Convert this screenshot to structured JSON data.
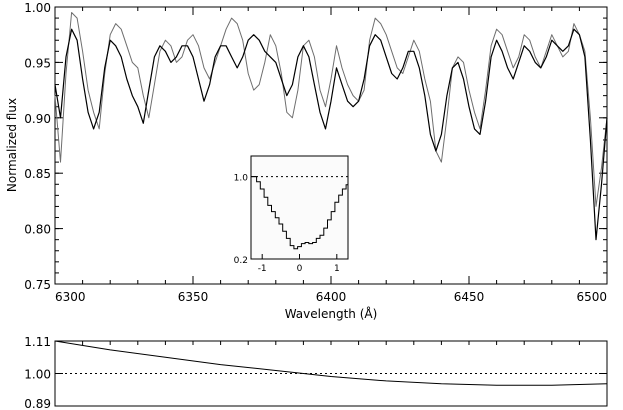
{
  "chart_data": [
    {
      "type": "line",
      "xlabel": "Wavelength (Å)",
      "ylabel": "Normalized flux",
      "xlim": [
        6300,
        6500
      ],
      "ylim": [
        0.75,
        1.0
      ],
      "xticks": [
        6300,
        6350,
        6400,
        6450,
        6500
      ],
      "xtick_labels": [
        "6300",
        "6350",
        "6400",
        "6450",
        "6500"
      ],
      "yticks": [
        0.75,
        0.8,
        0.85,
        0.9,
        0.95,
        1.0
      ],
      "ytick_labels": [
        "0.75",
        "0.80",
        "0.85",
        "0.90",
        "0.95",
        "1.00"
      ],
      "grid": false,
      "series": [
        {
          "color": "#6e6e6e",
          "x": [
            6300,
            6302,
            6304,
            6306,
            6308,
            6310,
            6312,
            6314,
            6316,
            6318,
            6320,
            6322,
            6324,
            6326,
            6328,
            6330,
            6332,
            6334,
            6336,
            6338,
            6340,
            6342,
            6344,
            6346,
            6348,
            6350,
            6352,
            6354,
            6356,
            6358,
            6360,
            6362,
            6364,
            6366,
            6368,
            6370,
            6372,
            6374,
            6376,
            6378,
            6380,
            6382,
            6384,
            6386,
            6388,
            6390,
            6392,
            6394,
            6396,
            6398,
            6400,
            6402,
            6404,
            6406,
            6408,
            6410,
            6412,
            6414,
            6416,
            6418,
            6420,
            6422,
            6424,
            6426,
            6428,
            6430,
            6432,
            6434,
            6436,
            6438,
            6440,
            6442,
            6444,
            6446,
            6448,
            6450,
            6452,
            6454,
            6456,
            6458,
            6460,
            6462,
            6464,
            6466,
            6468,
            6470,
            6472,
            6474,
            6476,
            6478,
            6480,
            6482,
            6484,
            6486,
            6488,
            6490,
            6492,
            6494,
            6496,
            6498,
            6500
          ],
          "y": [
            0.92,
            0.86,
            0.94,
            0.995,
            0.99,
            0.96,
            0.925,
            0.905,
            0.89,
            0.94,
            0.975,
            0.985,
            0.98,
            0.965,
            0.95,
            0.945,
            0.92,
            0.9,
            0.93,
            0.96,
            0.97,
            0.965,
            0.95,
            0.955,
            0.97,
            0.975,
            0.965,
            0.945,
            0.935,
            0.95,
            0.965,
            0.98,
            0.99,
            0.985,
            0.97,
            0.94,
            0.925,
            0.93,
            0.95,
            0.975,
            0.965,
            0.94,
            0.905,
            0.9,
            0.925,
            0.965,
            0.97,
            0.955,
            0.925,
            0.91,
            0.935,
            0.965,
            0.945,
            0.93,
            0.92,
            0.915,
            0.925,
            0.97,
            0.99,
            0.985,
            0.975,
            0.96,
            0.945,
            0.94,
            0.955,
            0.97,
            0.96,
            0.935,
            0.915,
            0.87,
            0.86,
            0.9,
            0.945,
            0.955,
            0.95,
            0.925,
            0.905,
            0.89,
            0.925,
            0.965,
            0.98,
            0.975,
            0.96,
            0.945,
            0.955,
            0.975,
            0.97,
            0.955,
            0.945,
            0.96,
            0.975,
            0.965,
            0.955,
            0.96,
            0.985,
            0.975,
            0.96,
            0.9,
            0.82,
            0.855,
            0.9
          ],
          "width": 1
        },
        {
          "color": "#000000",
          "x": [
            6300,
            6302,
            6304,
            6306,
            6308,
            6310,
            6312,
            6314,
            6316,
            6318,
            6320,
            6322,
            6324,
            6326,
            6328,
            6330,
            6332,
            6334,
            6336,
            6338,
            6340,
            6342,
            6344,
            6346,
            6348,
            6350,
            6352,
            6354,
            6356,
            6358,
            6360,
            6362,
            6364,
            6366,
            6368,
            6370,
            6372,
            6374,
            6376,
            6378,
            6380,
            6382,
            6384,
            6386,
            6388,
            6390,
            6392,
            6394,
            6396,
            6398,
            6400,
            6402,
            6404,
            6406,
            6408,
            6410,
            6412,
            6414,
            6416,
            6418,
            6420,
            6422,
            6424,
            6426,
            6428,
            6430,
            6432,
            6434,
            6436,
            6438,
            6440,
            6442,
            6444,
            6446,
            6448,
            6450,
            6452,
            6454,
            6456,
            6458,
            6460,
            6462,
            6464,
            6466,
            6468,
            6470,
            6472,
            6474,
            6476,
            6478,
            6480,
            6482,
            6484,
            6486,
            6488,
            6490,
            6492,
            6494,
            6496,
            6498,
            6500
          ],
          "y": [
            0.93,
            0.9,
            0.955,
            0.98,
            0.97,
            0.935,
            0.905,
            0.89,
            0.905,
            0.945,
            0.97,
            0.965,
            0.955,
            0.935,
            0.92,
            0.91,
            0.895,
            0.925,
            0.955,
            0.965,
            0.96,
            0.95,
            0.955,
            0.965,
            0.965,
            0.955,
            0.935,
            0.915,
            0.93,
            0.955,
            0.965,
            0.965,
            0.955,
            0.945,
            0.955,
            0.97,
            0.975,
            0.97,
            0.96,
            0.955,
            0.95,
            0.935,
            0.92,
            0.93,
            0.955,
            0.965,
            0.955,
            0.93,
            0.905,
            0.89,
            0.915,
            0.945,
            0.93,
            0.915,
            0.91,
            0.915,
            0.935,
            0.965,
            0.975,
            0.97,
            0.955,
            0.94,
            0.935,
            0.945,
            0.96,
            0.96,
            0.945,
            0.92,
            0.885,
            0.87,
            0.885,
            0.92,
            0.945,
            0.95,
            0.935,
            0.91,
            0.89,
            0.885,
            0.915,
            0.955,
            0.97,
            0.96,
            0.945,
            0.935,
            0.95,
            0.965,
            0.96,
            0.95,
            0.945,
            0.955,
            0.97,
            0.965,
            0.96,
            0.965,
            0.98,
            0.975,
            0.955,
            0.88,
            0.79,
            0.84,
            0.9
          ],
          "width": 1.2
        }
      ]
    },
    {
      "type": "line",
      "xlim": [
        6300,
        6500
      ],
      "ylim": [
        0.89,
        1.11
      ],
      "yticks": [
        0.89,
        1.0,
        1.11
      ],
      "ytick_labels": [
        "0.89",
        "1.00",
        "1.11"
      ],
      "reference_line": 1.0,
      "grid": false,
      "series": [
        {
          "color": "#000000",
          "x": [
            6300,
            6320,
            6340,
            6360,
            6380,
            6400,
            6420,
            6440,
            6460,
            6480,
            6500
          ],
          "y": [
            1.11,
            1.08,
            1.055,
            1.03,
            1.01,
            0.99,
            0.975,
            0.965,
            0.96,
            0.96,
            0.965
          ],
          "width": 1
        }
      ]
    },
    {
      "type": "line",
      "xlim": [
        -1.3,
        1.3
      ],
      "ylim": [
        0.2,
        1.2
      ],
      "xticks": [
        -1,
        0,
        1
      ],
      "xtick_labels": [
        "-1",
        "0",
        "1"
      ],
      "yticks": [
        0.2,
        1.0
      ],
      "ytick_labels": [
        "0.2",
        "1.0"
      ],
      "reference_line": 1.0,
      "grid": false,
      "series": [
        {
          "color": "#000000",
          "step": true,
          "x": [
            -1.25,
            -1.15,
            -1.05,
            -0.95,
            -0.85,
            -0.75,
            -0.65,
            -0.55,
            -0.45,
            -0.35,
            -0.25,
            -0.15,
            -0.05,
            0.05,
            0.15,
            0.25,
            0.35,
            0.45,
            0.55,
            0.65,
            0.75,
            0.85,
            0.95,
            1.05,
            1.15,
            1.25
          ],
          "y": [
            1.0,
            0.95,
            0.88,
            0.8,
            0.72,
            0.66,
            0.6,
            0.54,
            0.47,
            0.4,
            0.33,
            0.3,
            0.32,
            0.35,
            0.36,
            0.35,
            0.36,
            0.4,
            0.43,
            0.5,
            0.58,
            0.66,
            0.75,
            0.82,
            0.88,
            0.92
          ],
          "width": 1
        }
      ]
    }
  ]
}
